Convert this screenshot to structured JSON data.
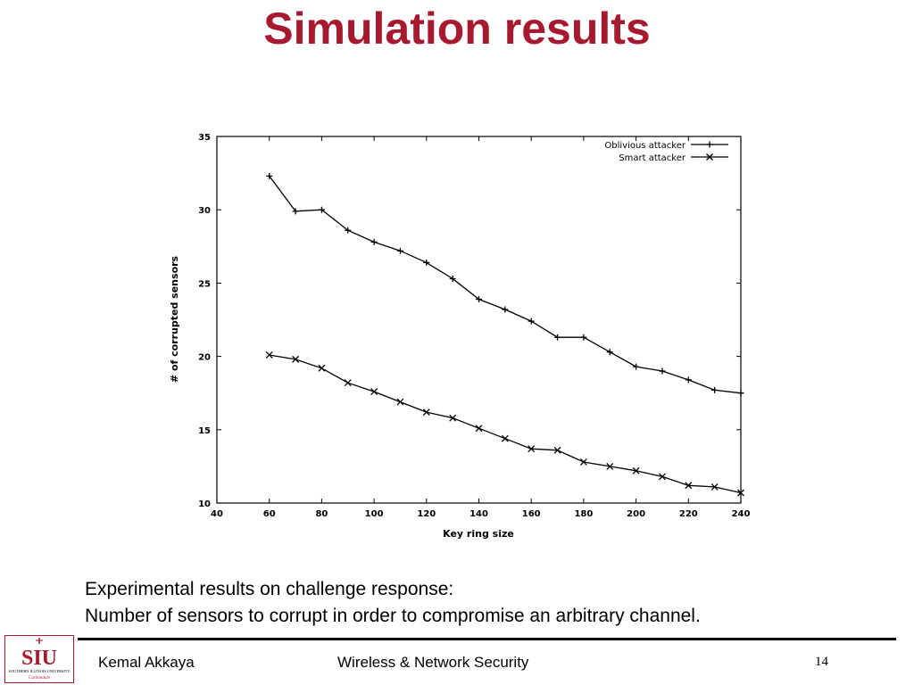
{
  "colors": {
    "title": "#A6192E",
    "logo_red": "#A6192E",
    "ink": "#000000"
  },
  "slide": {
    "title": "Simulation results",
    "caption_line1": "Experimental results on challenge response:",
    "caption_line2": "Number of sensors to corrupt in order to compromise an arbitrary channel."
  },
  "footer": {
    "author": "Kemal Akkaya",
    "course": "Wireless & Network Security",
    "page": "14"
  },
  "logo": {
    "mark": "SIU",
    "line1": "SOUTHERN ILLINOIS UNIVERSITY",
    "line2": "Carbondale"
  },
  "chart_data": {
    "type": "line",
    "title": "",
    "xlabel": "Key ring size",
    "ylabel": "# of corrupted sensors",
    "xlim": [
      40,
      240
    ],
    "ylim": [
      10,
      35
    ],
    "xticks": [
      40,
      60,
      80,
      100,
      120,
      140,
      160,
      180,
      200,
      220,
      240
    ],
    "yticks": [
      10,
      15,
      20,
      25,
      30,
      35
    ],
    "legend_position": "top-right",
    "grid": false,
    "x": [
      60,
      70,
      80,
      90,
      100,
      110,
      120,
      130,
      140,
      150,
      160,
      170,
      180,
      190,
      200,
      210,
      220,
      230,
      240
    ],
    "series": [
      {
        "name": "Oblivious attacker",
        "marker": "plus",
        "values": [
          32.3,
          29.9,
          30.0,
          28.6,
          27.8,
          27.2,
          26.4,
          25.3,
          23.9,
          23.2,
          22.4,
          21.3,
          21.3,
          20.3,
          19.3,
          19.0,
          18.4,
          17.7,
          17.5
        ]
      },
      {
        "name": "Smart attacker",
        "marker": "cross",
        "values": [
          20.1,
          19.8,
          19.2,
          18.2,
          17.6,
          16.9,
          16.2,
          15.8,
          15.1,
          14.4,
          13.7,
          13.6,
          12.8,
          12.5,
          12.2,
          11.8,
          11.2,
          11.1,
          10.7
        ]
      }
    ]
  }
}
